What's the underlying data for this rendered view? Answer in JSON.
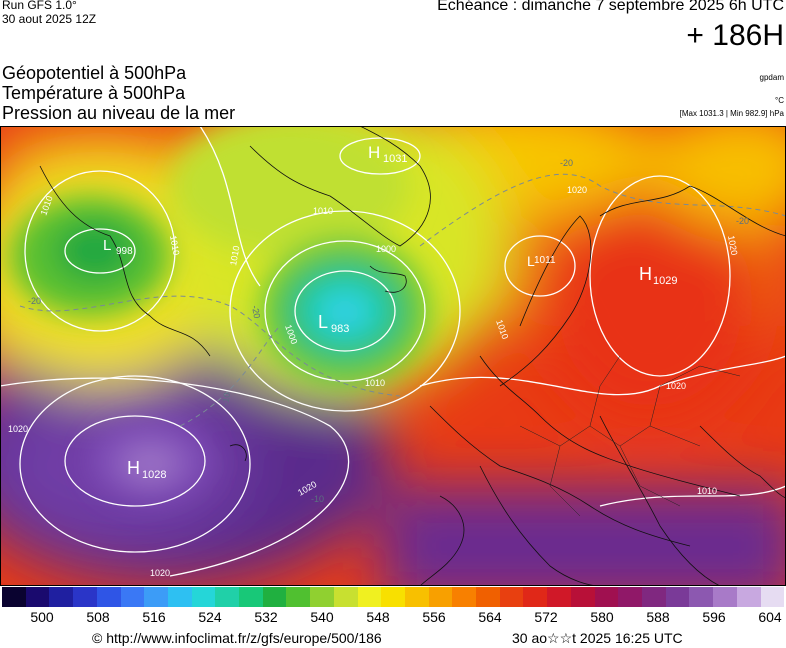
{
  "header": {
    "run": "Run GFS 1.0°",
    "run_date": "30 aout 2025 12Z",
    "echeance": "Echéance : dimanche 7 septembre 2025 6h UTC",
    "forecast_hours": "+ 186H"
  },
  "parameters": {
    "line1": "Géopotentiel à 500hPa",
    "line2": "Température à 500hPa",
    "line3": "Pression au niveau de la mer",
    "unit_geopotential": "gpdam",
    "unit_temperature": "°C",
    "extremes": "[Max 1031.3 | Min 982.9] hPa"
  },
  "pressure_centers": [
    {
      "type": "H",
      "value": "1031"
    },
    {
      "type": "L",
      "value": "998"
    },
    {
      "type": "L",
      "value": "983"
    },
    {
      "type": "L",
      "value": "1011"
    },
    {
      "type": "H",
      "value": "1029"
    },
    {
      "type": "H",
      "value": "1028"
    }
  ],
  "isobar_labels": [
    "1010",
    "1010",
    "1010",
    "1010",
    "1020",
    "1020",
    "1010",
    "1000",
    "1000",
    "1010",
    "1020",
    "1020",
    "1020",
    "1010",
    "1020"
  ],
  "temperature_labels": [
    "-20",
    "-20",
    "-20",
    "-20",
    "-10",
    "-10"
  ],
  "colorbar": {
    "ticks": [
      "500",
      "508",
      "516",
      "524",
      "532",
      "540",
      "548",
      "556",
      "564",
      "572",
      "580",
      "588",
      "596",
      "604"
    ],
    "colors": [
      "#0a0330",
      "#1a0a6e",
      "#1f1fa0",
      "#2a35c8",
      "#2f55e6",
      "#3a78f5",
      "#3c9cf7",
      "#2ec0f2",
      "#25d6d8",
      "#20d0a8",
      "#18c878",
      "#20b040",
      "#50c030",
      "#90d030",
      "#c8e030",
      "#f0f020",
      "#f8e000",
      "#f8c000",
      "#f8a000",
      "#f88000",
      "#f06000",
      "#e84010",
      "#e02818",
      "#d01828",
      "#b81038",
      "#a01050",
      "#901868",
      "#802880",
      "#7a3a98",
      "#8c58b0",
      "#a87ac8",
      "#c8a8e0",
      "#e6dcf2"
    ]
  },
  "footer": {
    "copyright": "© http://www.infoclimat.fr/z/gfs/europe/500/186",
    "timestamp": "30 ao☆☆t 2025 16:25 UTC"
  }
}
